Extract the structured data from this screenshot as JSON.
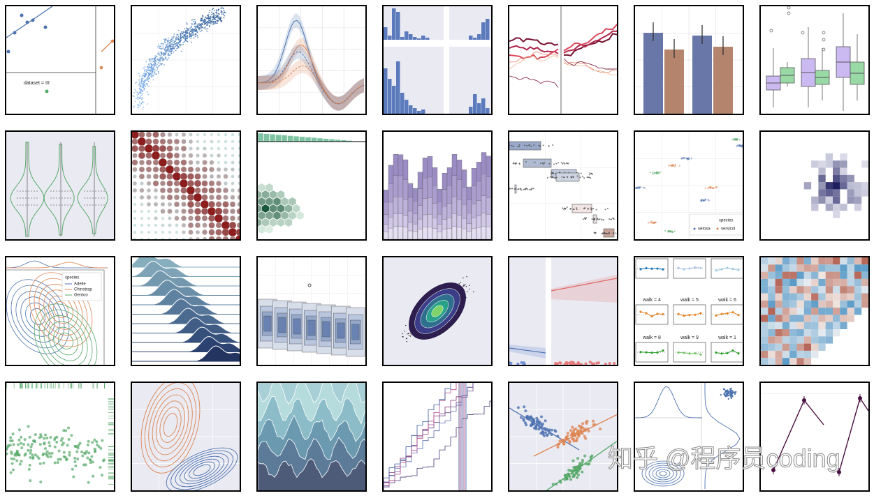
{
  "dataset_label": "dataset = III",
  "penguin_legend": {
    "title": "species",
    "items": [
      "Adelie",
      "Chinstrap",
      "Gentoo"
    ]
  },
  "iris_legend": {
    "title": "species",
    "items": [
      "setosa",
      "versicol"
    ]
  },
  "walk_titles": [
    "walk = 4",
    "walk = 5",
    "walk = 6",
    "walk = 8",
    "walk = 9",
    "walk = 1"
  ],
  "watermark": "知乎 @程序员coding"
}
